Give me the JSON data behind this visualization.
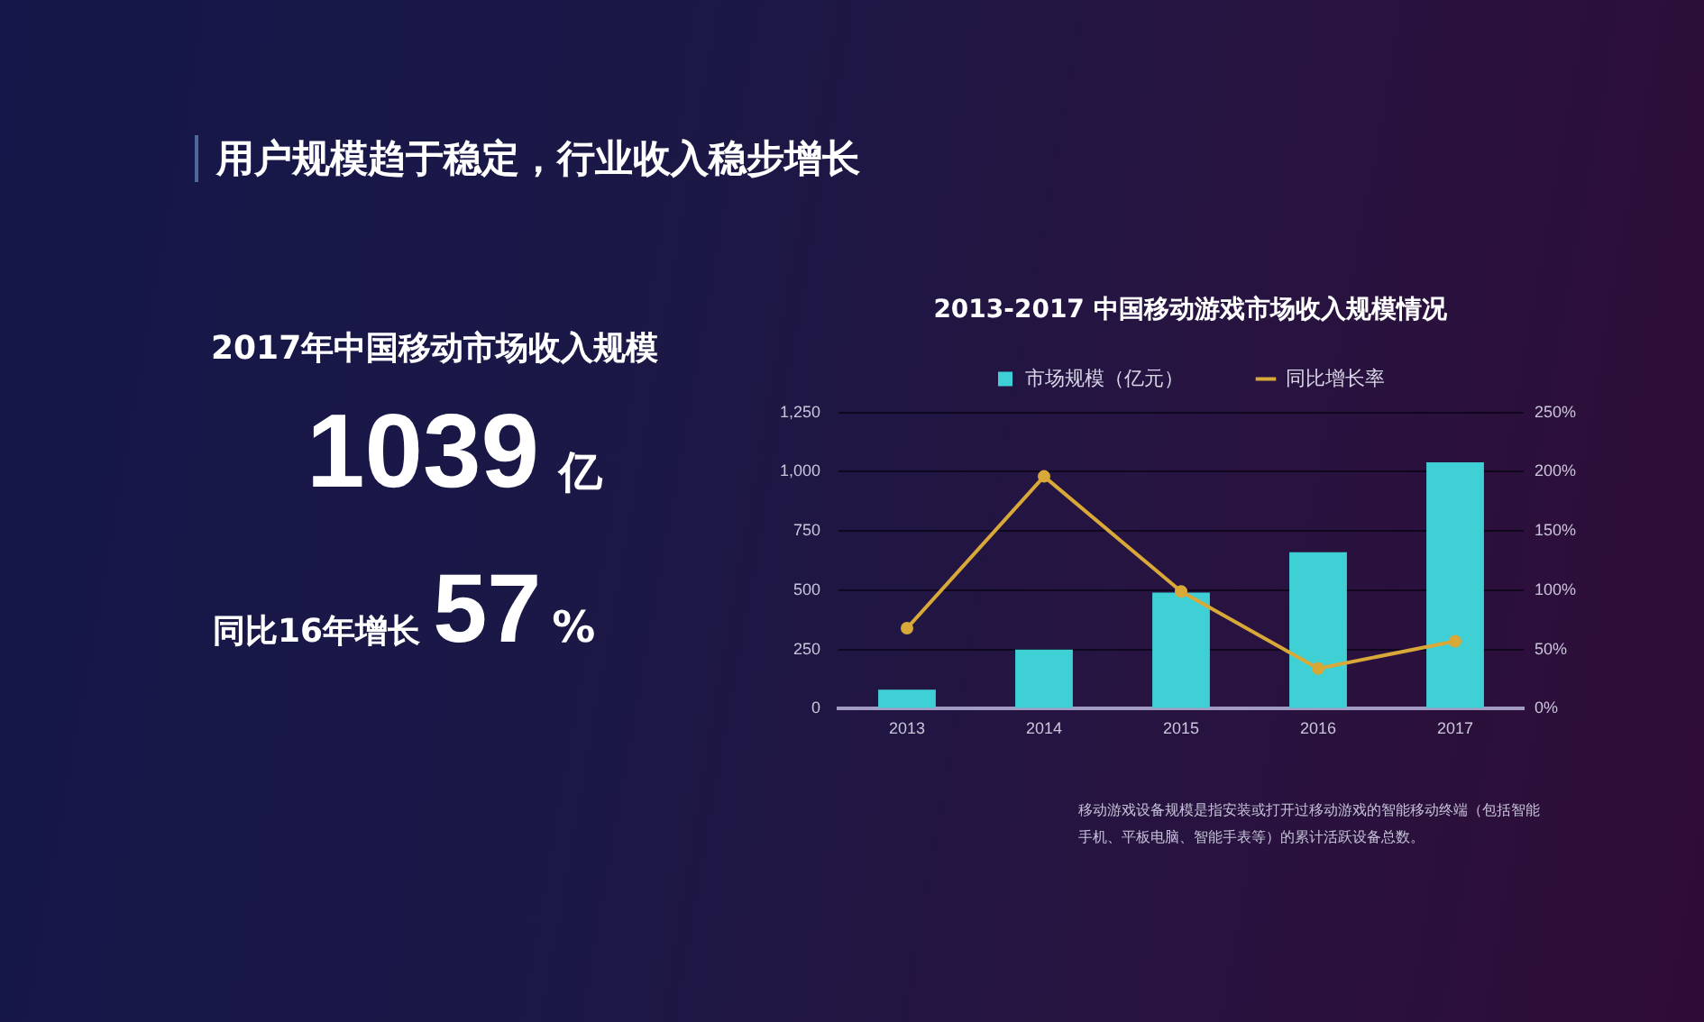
{
  "chart_data": [
    {
      "type": "other",
      "title": "用户规模趋于稳定，行业收入稳步增长",
      "subtitle": "2017年中国移动市场收入规模",
      "annotations": [
        "1039亿",
        "同比16年增长57%"
      ]
    },
    {
      "type": "bar",
      "title": "2013-2017 中国移动游戏市场收入规模情况",
      "categories": [
        "2013",
        "2014",
        "2015",
        "2016",
        "2017"
      ],
      "series": [
        {
          "name": "市场规模（亿元）",
          "type": "bar",
          "color": "#3fd0d6",
          "values": [
            80,
            250,
            490,
            660,
            1039
          ]
        },
        {
          "name": "同比增长率",
          "type": "line",
          "axis": "y2",
          "color": "#d8a838",
          "values": [
            68,
            196,
            99,
            34,
            57
          ]
        }
      ],
      "ylim": [
        0,
        1250
      ],
      "yticks": [
        0,
        250,
        500,
        750,
        {
          "value": 1000,
          "label": "1,000"
        },
        {
          "value": 1250,
          "label": "1,250"
        }
      ],
      "y2lim": [
        0,
        250
      ],
      "y2ticks": [
        {
          "value": 0,
          "label": "0%"
        },
        {
          "value": 50,
          "label": "50%"
        },
        {
          "value": 100,
          "label": "100%"
        },
        {
          "value": 150,
          "label": "150%"
        },
        {
          "value": 200,
          "label": "200%"
        },
        {
          "value": 250,
          "label": "250%"
        }
      ],
      "grid": "y",
      "legend": "top",
      "marker": "circle",
      "annotations": [
        "移动游戏设备规模是指安装或打开过移动游戏的智能移动终端（包括智能手机、平板电脑、智能手表等）的累计活跃设备总数。"
      ]
    }
  ]
}
